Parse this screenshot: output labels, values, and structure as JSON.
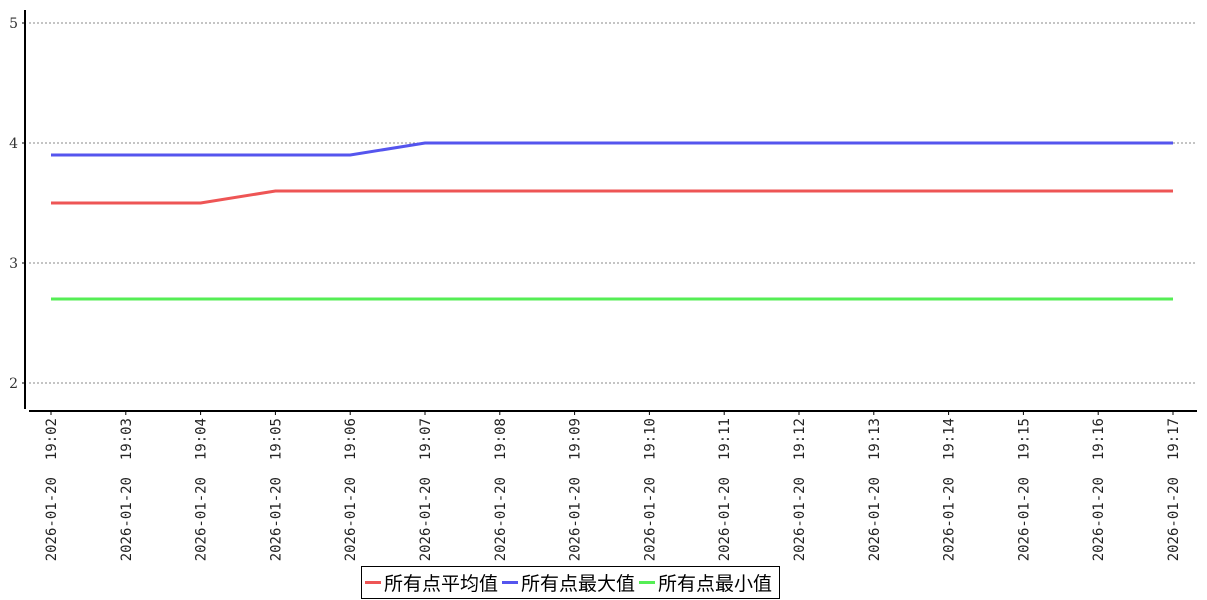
{
  "chart_data": {
    "type": "line",
    "title": "",
    "xlabel": "",
    "ylabel": "",
    "ylim": [
      2,
      5
    ],
    "yticks": [
      "2",
      "3",
      "4",
      "5"
    ],
    "grid": true,
    "legend_position": "bottom",
    "x": [
      "2026-01-20 19:02",
      "2026-01-20 19:03",
      "2026-01-20 19:04",
      "2026-01-20 19:05",
      "2026-01-20 19:06",
      "2026-01-20 19:07",
      "2026-01-20 19:08",
      "2026-01-20 19:09",
      "2026-01-20 19:10",
      "2026-01-20 19:11",
      "2026-01-20 19:12",
      "2026-01-20 19:13",
      "2026-01-20 19:14",
      "2026-01-20 19:15",
      "2026-01-20 19:16",
      "2026-01-20 19:17"
    ],
    "series": [
      {
        "name": "所有点平均值",
        "color": "#ee5555",
        "values": [
          3.5,
          3.5,
          3.5,
          3.6,
          3.6,
          3.6,
          3.6,
          3.6,
          3.6,
          3.6,
          3.6,
          3.6,
          3.6,
          3.6,
          3.6,
          3.6
        ]
      },
      {
        "name": "所有点最大值",
        "color": "#5555ee",
        "values": [
          3.9,
          3.9,
          3.9,
          3.9,
          3.9,
          4.0,
          4.0,
          4.0,
          4.0,
          4.0,
          4.0,
          4.0,
          4.0,
          4.0,
          4.0,
          4.0
        ]
      },
      {
        "name": "所有点最小值",
        "color": "#55ee55",
        "values": [
          2.7,
          2.7,
          2.7,
          2.7,
          2.7,
          2.7,
          2.7,
          2.7,
          2.7,
          2.7,
          2.7,
          2.7,
          2.7,
          2.7,
          2.7,
          2.7
        ]
      }
    ]
  }
}
